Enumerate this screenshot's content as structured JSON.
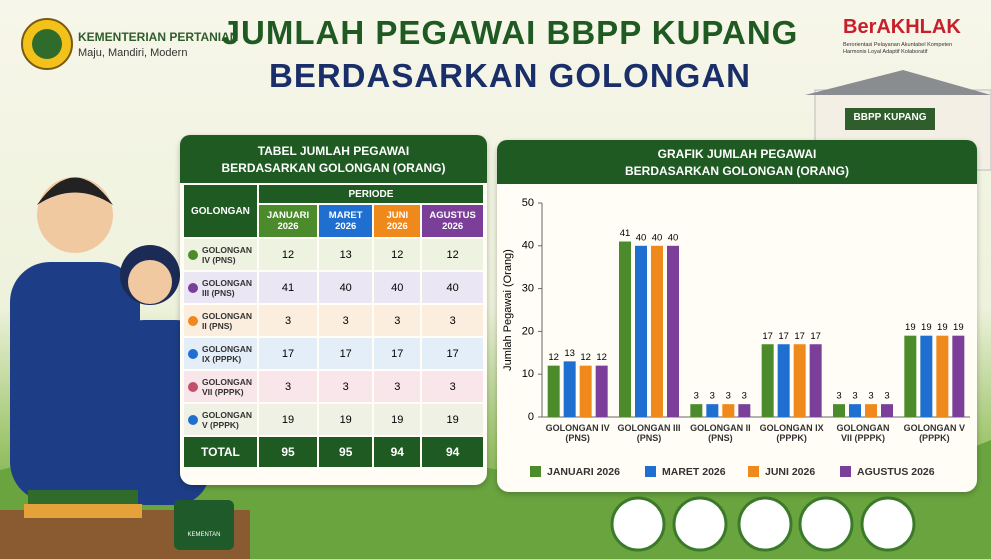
{
  "header": {
    "ministry": "KEMENTERIAN PERTANIAN",
    "tagline": "Maju, Mandiri, Modern",
    "title_lines": [
      "JUMLAH PEGAWAI BBPP KUPANG",
      "BERDASARKAN GOLONGAN"
    ],
    "brand": "BerAKHLAK",
    "brand_tagline": [
      "Berorientasi Pelayanan Akuntabel Kompeten",
      "Harmonis Loyal Adaptif Kolaboratif"
    ],
    "building_sign": "BBPP KUPANG",
    "mug_text": "KEMENTAN"
  },
  "table": {
    "title_lines": [
      "TABEL JUMLAH PEGAWAI",
      "BERDASARKAN GOLONGAN (ORANG)"
    ],
    "first_header": "GOLONGAN",
    "period_header": "PERIODE",
    "columns": [
      "JANUARI 2026",
      "MARET 2026",
      "JUNI 2026",
      "AGUSTUS 2026"
    ],
    "rows": [
      [
        "GOLONGAN IV (PNS)",
        "12",
        "13",
        "12",
        "12"
      ],
      [
        "GOLONGAN III (PNS)",
        "41",
        "40",
        "40",
        "40"
      ],
      [
        "GOLONGAN II (PNS)",
        "3",
        "3",
        "3",
        "3"
      ],
      [
        "GOLONGAN IX (PPPK)",
        "17",
        "17",
        "17",
        "17"
      ],
      [
        "GOLONGAN VII (PPPK)",
        "3",
        "3",
        "3",
        "3"
      ],
      [
        "GOLONGAN V (PPPK)",
        "19",
        "19",
        "19",
        "19"
      ]
    ],
    "total": [
      "TOTAL",
      "95",
      "95",
      "94",
      "94"
    ]
  },
  "chart_data": {
    "type": "bar",
    "title_lines": [
      "GRAFIK JUMLAH PEGAWAI",
      "BERDASARKAN GOLONGAN (ORANG)"
    ],
    "y_label": "Jumlah Pegawai (Orang)",
    "categories": [
      "GOLONGAN IV (PNS)",
      "GOLONGAN III (PNS)",
      "GOLONGAN II (PNS)",
      "GOLONGAN IX (PPPK)",
      "GOLONGAN VII (PPPK)",
      "GOLONGAN V (PPPK)"
    ],
    "series": [
      {
        "name": "JANUARI 2026",
        "color": "#4b8b2b",
        "values": [
          12,
          41,
          3,
          17,
          3,
          19
        ]
      },
      {
        "name": "MARET 2026",
        "color": "#1f6fd0",
        "values": [
          13,
          40,
          3,
          17,
          3,
          19
        ]
      },
      {
        "name": "JUNI 2026",
        "color": "#f0891c",
        "values": [
          12,
          40,
          3,
          17,
          3,
          19
        ]
      },
      {
        "name": "AGUSTUS 2026",
        "color": "#7b3f9a",
        "values": [
          12,
          40,
          3,
          17,
          3,
          19
        ]
      }
    ],
    "ylim": [
      0,
      50
    ],
    "yticks": [
      0,
      10,
      20,
      30,
      40,
      50
    ],
    "grid": false
  }
}
